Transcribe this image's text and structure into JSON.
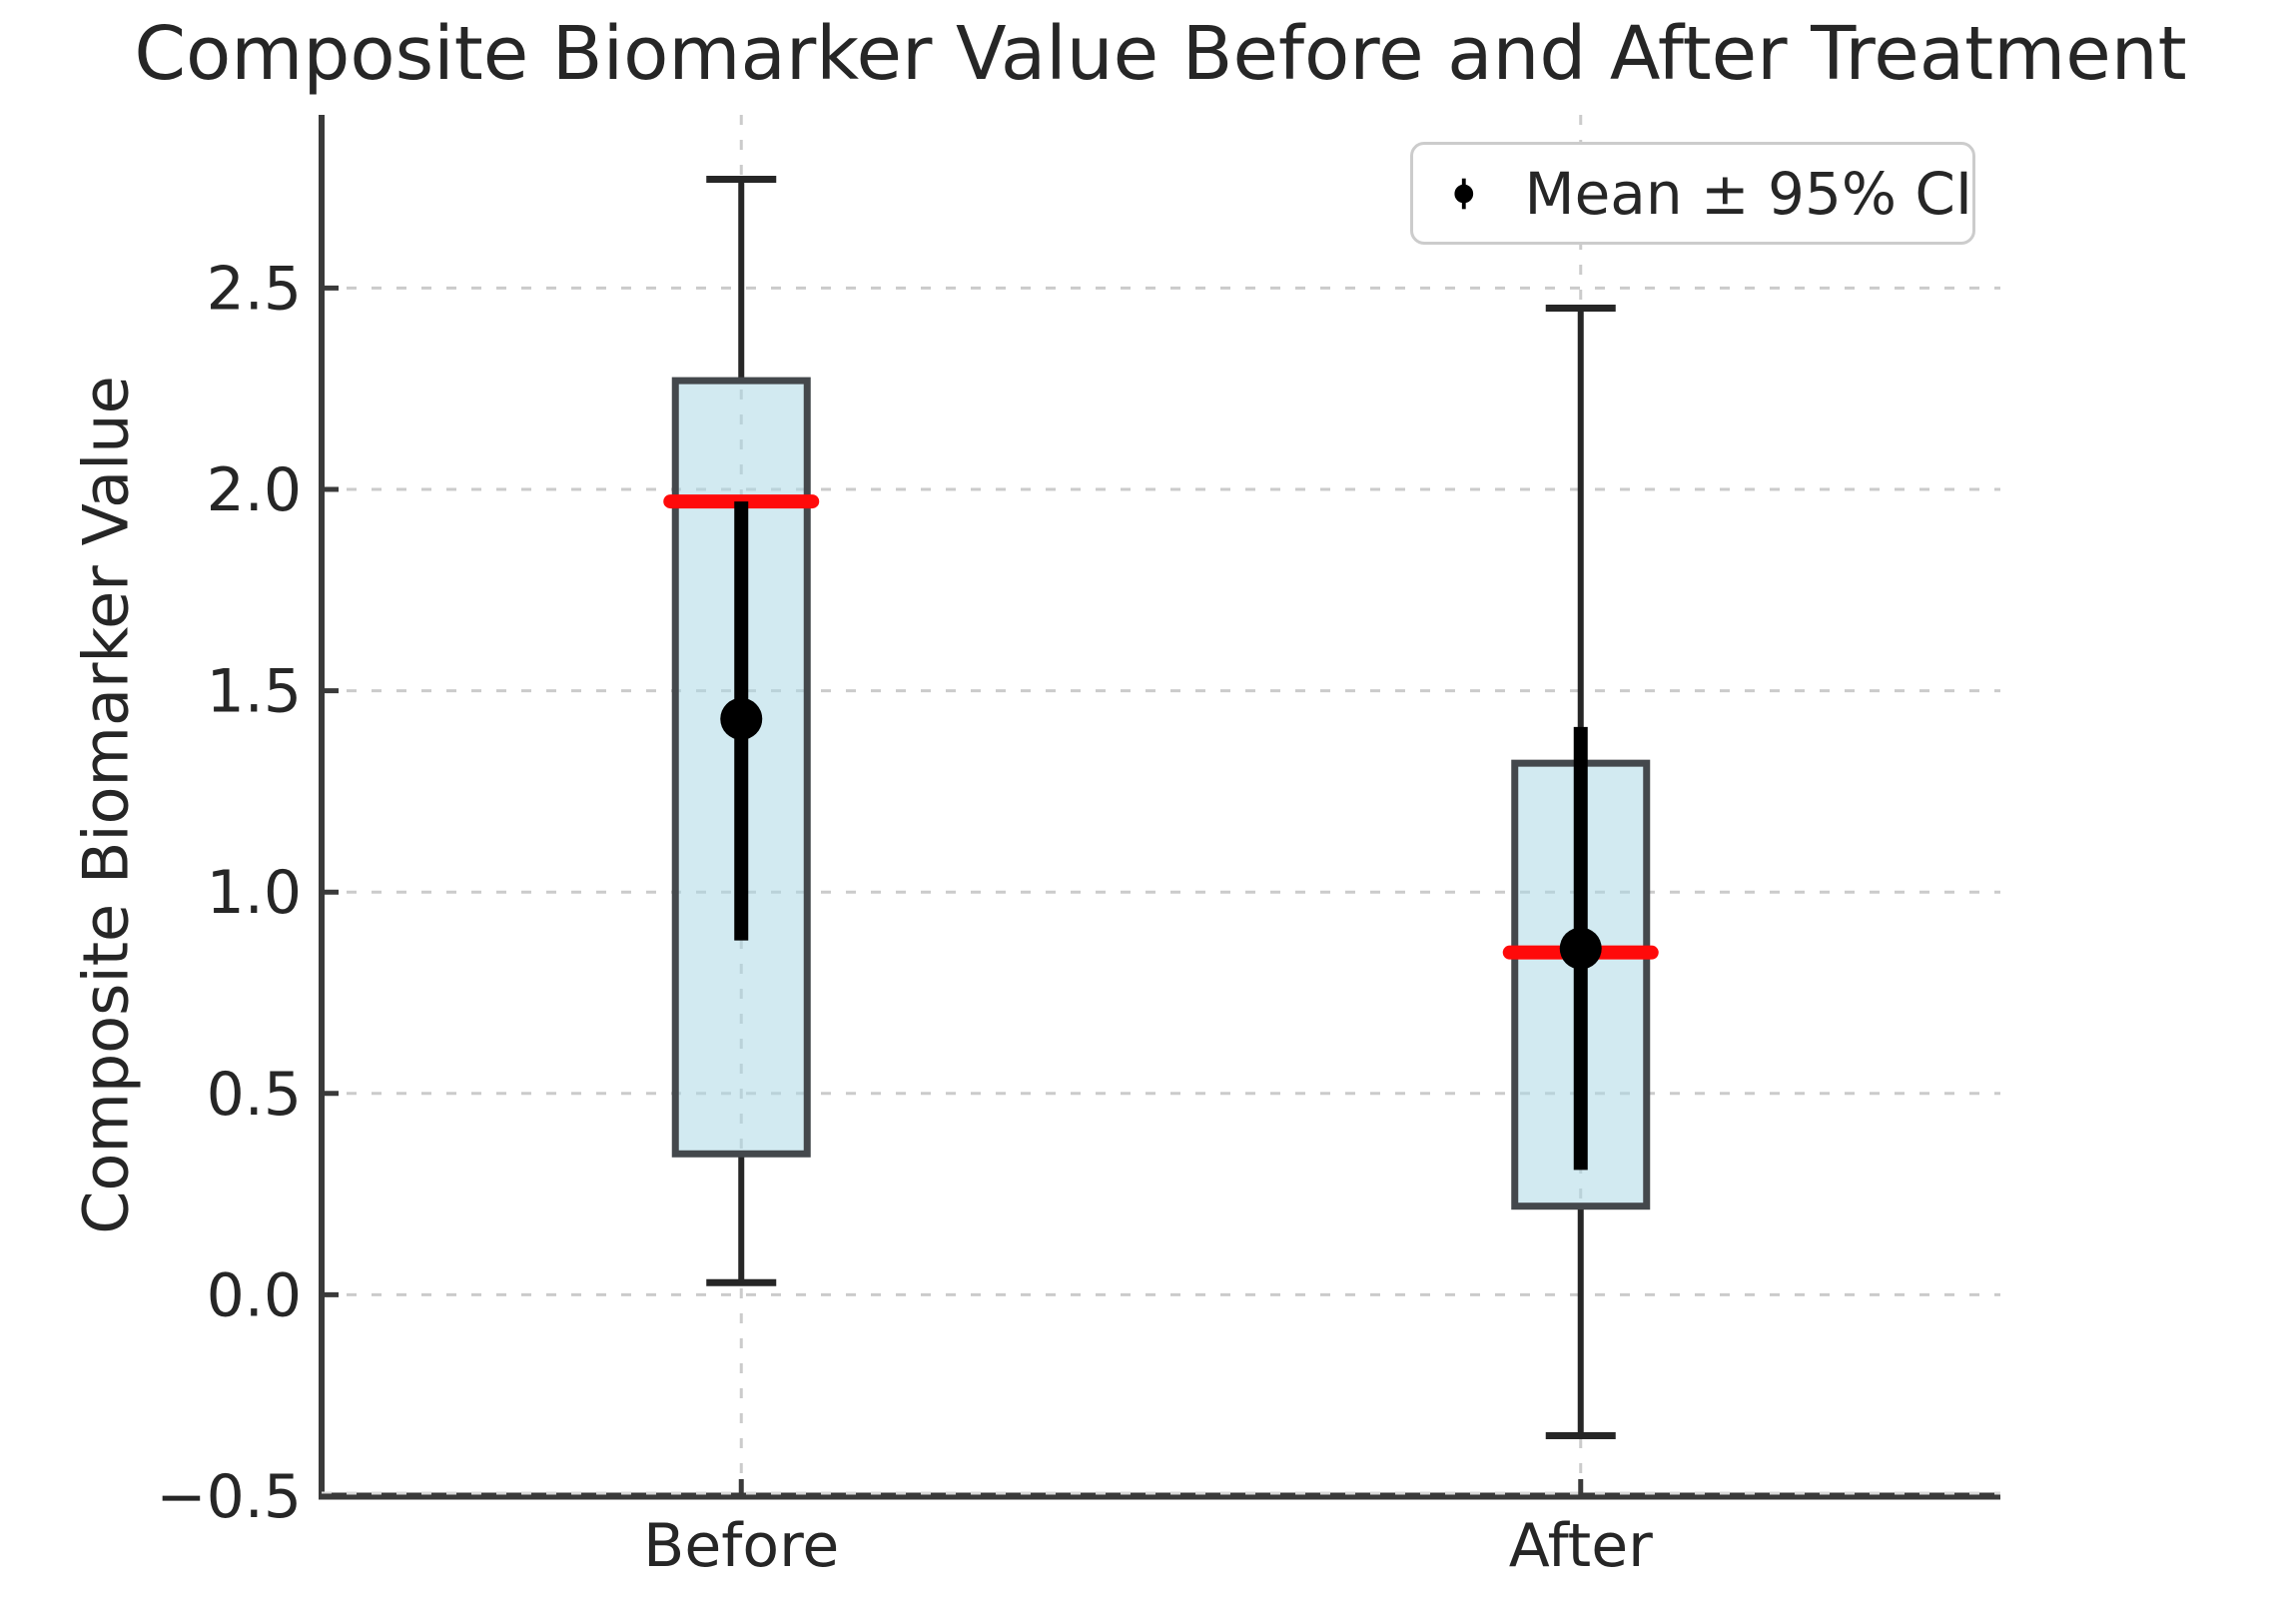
{
  "chart_data": {
    "type": "box",
    "title": "Composite Biomarker Value Before and After Treatment",
    "ylabel": "Composite Biomarker Value",
    "xlabel": "",
    "categories": [
      "Before",
      "After"
    ],
    "ylim": [
      -0.5,
      2.93
    ],
    "yticks": [
      -0.5,
      0.0,
      0.5,
      1.0,
      1.5,
      2.0,
      2.5
    ],
    "grid": "dashed gridlines on both axes",
    "legend": {
      "label": "Mean ± 95% CI",
      "position": "upper right",
      "marker": "black-circle-with-vertical-ci-line"
    },
    "series": [
      {
        "category": "Before",
        "whisker_low": 0.03,
        "q1": 0.35,
        "median": 1.97,
        "q3": 2.27,
        "whisker_high": 2.77,
        "mean": 1.43,
        "ci_low": 0.88,
        "ci_high": 1.97
      },
      {
        "category": "After",
        "whisker_low": -0.35,
        "q1": 0.22,
        "median": 0.85,
        "q3": 1.32,
        "whisker_high": 2.45,
        "mean": 0.86,
        "ci_low": 0.31,
        "ci_high": 1.41
      }
    ],
    "colors": {
      "box_fill": "#ADD8E6",
      "box_edge": "#44484c",
      "median_line": "#ff0a0a",
      "whisker": "#262626",
      "mean_marker": "#000000",
      "ci_line": "#000000",
      "grid": "#cbcbcb",
      "spine": "#3a3a3a",
      "text": "#262626"
    }
  }
}
